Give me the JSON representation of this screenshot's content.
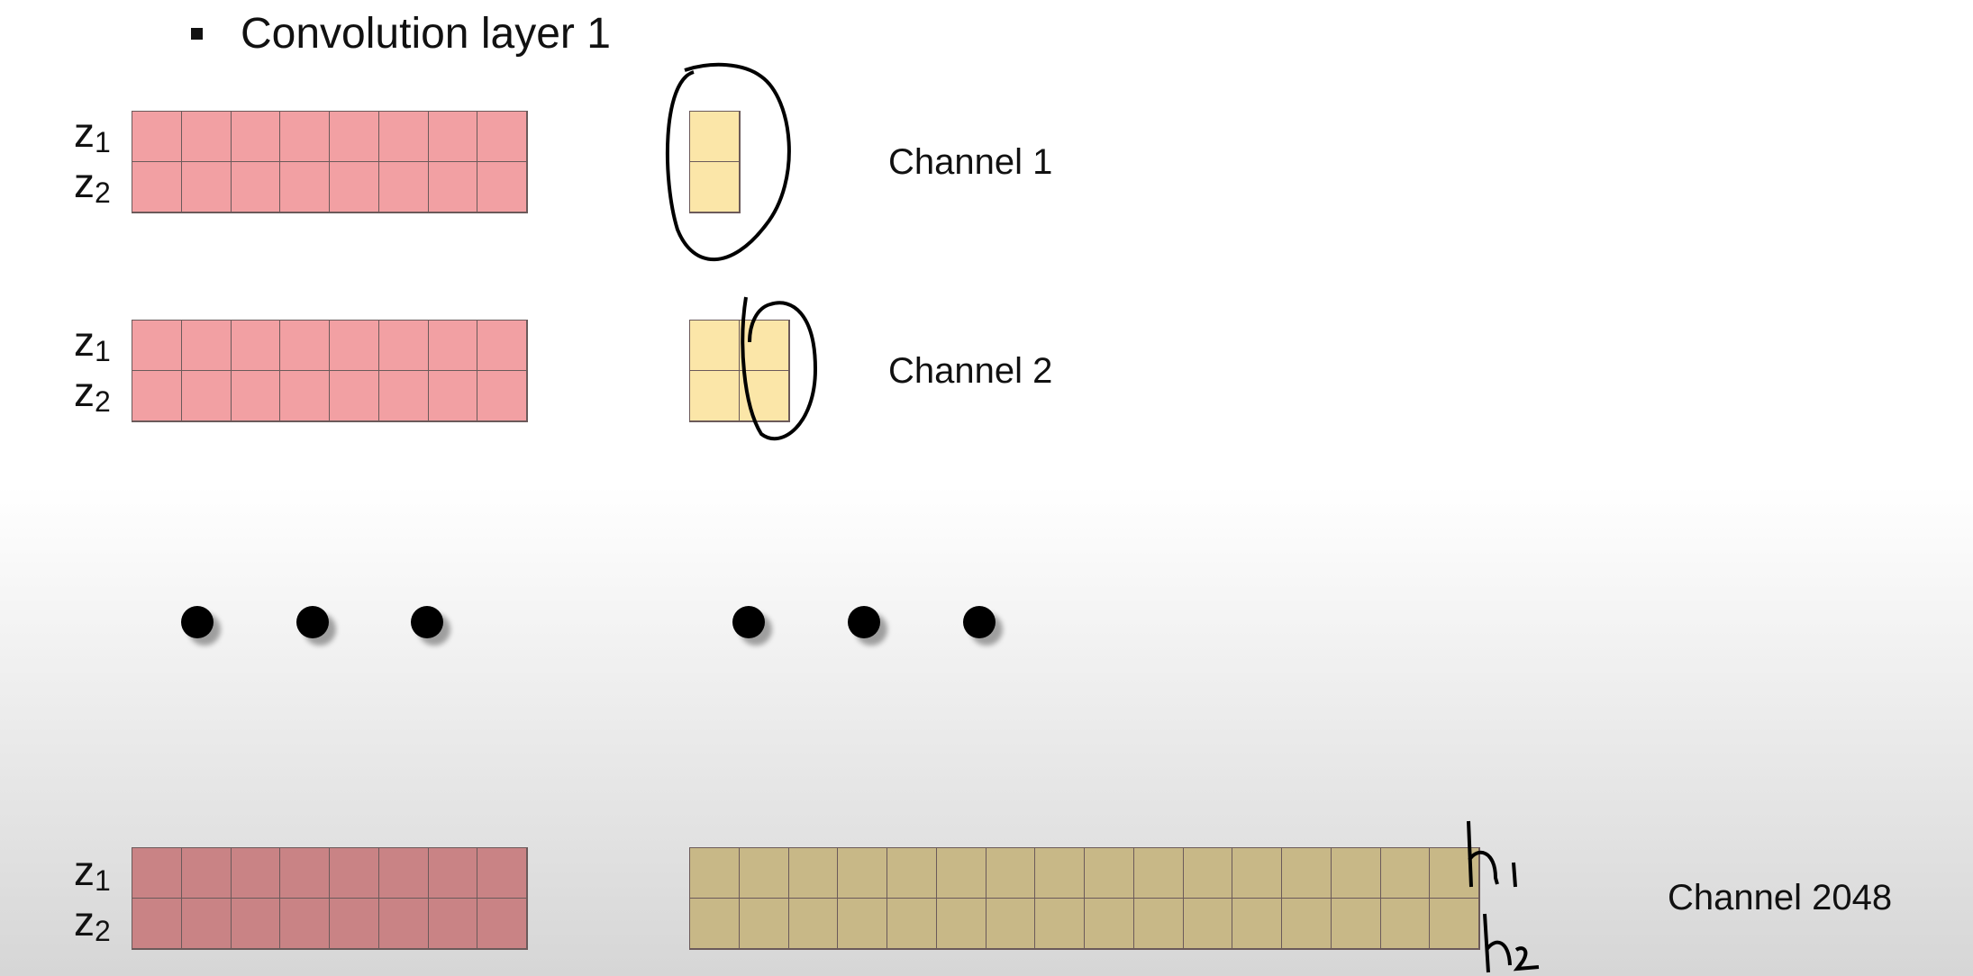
{
  "title": "Convolution layer 1",
  "row_labels": {
    "z1": "z",
    "z1_sub": "1",
    "z2": "z",
    "z2_sub": "2"
  },
  "channels": [
    {
      "label": "Channel  1"
    },
    {
      "label": "Channel  2"
    },
    {
      "label": "Channel  2048"
    }
  ],
  "input_grid": {
    "rows": 2,
    "cols": 8
  },
  "kernel_grids": [
    {
      "rows": 2,
      "cols": 1
    },
    {
      "rows": 2,
      "cols": 2
    },
    {
      "rows": 2,
      "cols": 16
    }
  ],
  "annotations": {
    "h1": "h1",
    "h2": "h2"
  },
  "colors": {
    "input": "#f2a0a3",
    "kernel": "#fbe6a8",
    "input_dark": "#c98385",
    "kernel_dark": "#c8b887"
  }
}
